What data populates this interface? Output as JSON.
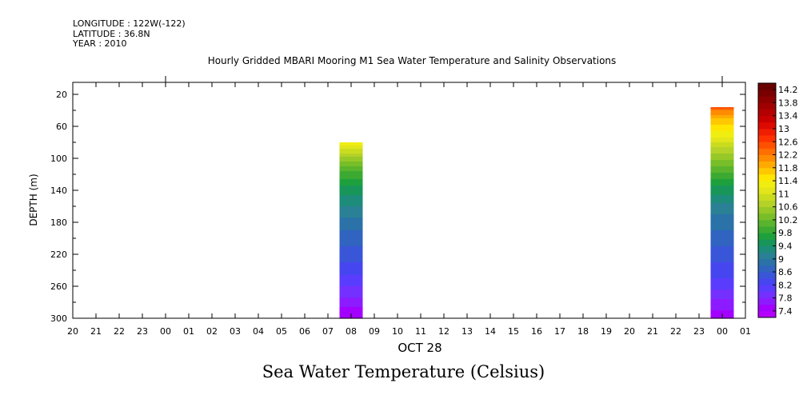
{
  "header": {
    "longitude": "LONGITUDE : 122W(-122)",
    "latitude": "LATITUDE : 36.8N",
    "year": "YEAR : 2010",
    "title": "Hourly Gridded MBARI Mooring M1 Sea Water Temperature and Salinity Observations"
  },
  "bottom_title": "Sea Water Temperature (Celsius)",
  "chart_data": {
    "type": "heatmap",
    "title": "Hourly Gridded MBARI Mooring M1 Sea Water Temperature and Salinity Observations",
    "variable": "Sea Water Temperature (Celsius)",
    "xlabel": "OCT 28",
    "ylabel": "DEPTH (m)",
    "x_tick_labels": [
      "20",
      "21",
      "22",
      "23",
      "00",
      "01",
      "02",
      "03",
      "04",
      "05",
      "06",
      "07",
      "08",
      "09",
      "10",
      "11",
      "12",
      "13",
      "14",
      "15",
      "16",
      "17",
      "18",
      "19",
      "20",
      "21",
      "22",
      "23",
      "00",
      "01"
    ],
    "y_ticks": [
      20,
      60,
      100,
      140,
      180,
      220,
      260,
      300
    ],
    "ylim": [
      300,
      5
    ],
    "y_inverted": true,
    "colorbar_labels": [
      "14.2",
      "13.8",
      "13.4",
      "13",
      "12.6",
      "12.2",
      "11.8",
      "11.4",
      "11",
      "10.6",
      "10.2",
      "9.8",
      "9.4",
      "9",
      "8.6",
      "8.2",
      "7.8",
      "7.4"
    ],
    "colorbar_range": [
      7.2,
      14.4
    ],
    "colorbar_step": 0.2,
    "colors": [
      "#b400ff",
      "#a200ff",
      "#8c1cff",
      "#7430ff",
      "#5a3cff",
      "#4646f0",
      "#3a56d8",
      "#3064c0",
      "#2a72a8",
      "#2a8094",
      "#1e8c7a",
      "#18965a",
      "#1ea03c",
      "#3caa32",
      "#5ab42d",
      "#78be28",
      "#96c828",
      "#b4d228",
      "#cadc1e",
      "#e2e61a",
      "#f0ee10",
      "#ffe600",
      "#ffc800",
      "#ffaa00",
      "#ff8c00",
      "#ff6e00",
      "#ff5000",
      "#ff3200",
      "#f01e00",
      "#dc0a00",
      "#c80000",
      "#b40000",
      "#a00000",
      "#8c0000",
      "#7a0000",
      "#680000"
    ],
    "columns": [
      {
        "x_index": 12,
        "label": "08",
        "profile": [
          {
            "depth": 80,
            "temp": 11.4
          },
          {
            "depth": 100,
            "temp": 10.5
          },
          {
            "depth": 120,
            "temp": 9.9
          },
          {
            "depth": 140,
            "temp": 9.5
          },
          {
            "depth": 160,
            "temp": 9.2
          },
          {
            "depth": 180,
            "temp": 8.9
          },
          {
            "depth": 200,
            "temp": 8.7
          },
          {
            "depth": 220,
            "temp": 8.5
          },
          {
            "depth": 240,
            "temp": 8.3
          },
          {
            "depth": 260,
            "temp": 8.0
          },
          {
            "depth": 280,
            "temp": 7.7
          },
          {
            "depth": 300,
            "temp": 7.4
          }
        ]
      },
      {
        "x_index": 28,
        "label": "00",
        "profile": [
          {
            "depth": 36,
            "temp": 12.7
          },
          {
            "depth": 40,
            "temp": 12.2
          },
          {
            "depth": 50,
            "temp": 11.8
          },
          {
            "depth": 70,
            "temp": 11.3
          },
          {
            "depth": 90,
            "temp": 10.7
          },
          {
            "depth": 110,
            "temp": 10.2
          },
          {
            "depth": 130,
            "temp": 9.7
          },
          {
            "depth": 150,
            "temp": 9.3
          },
          {
            "depth": 170,
            "temp": 9.0
          },
          {
            "depth": 190,
            "temp": 8.8
          },
          {
            "depth": 210,
            "temp": 8.6
          },
          {
            "depth": 230,
            "temp": 8.4
          },
          {
            "depth": 250,
            "temp": 8.2
          },
          {
            "depth": 270,
            "temp": 7.9
          },
          {
            "depth": 290,
            "temp": 7.6
          },
          {
            "depth": 300,
            "temp": 7.4
          }
        ]
      }
    ]
  }
}
